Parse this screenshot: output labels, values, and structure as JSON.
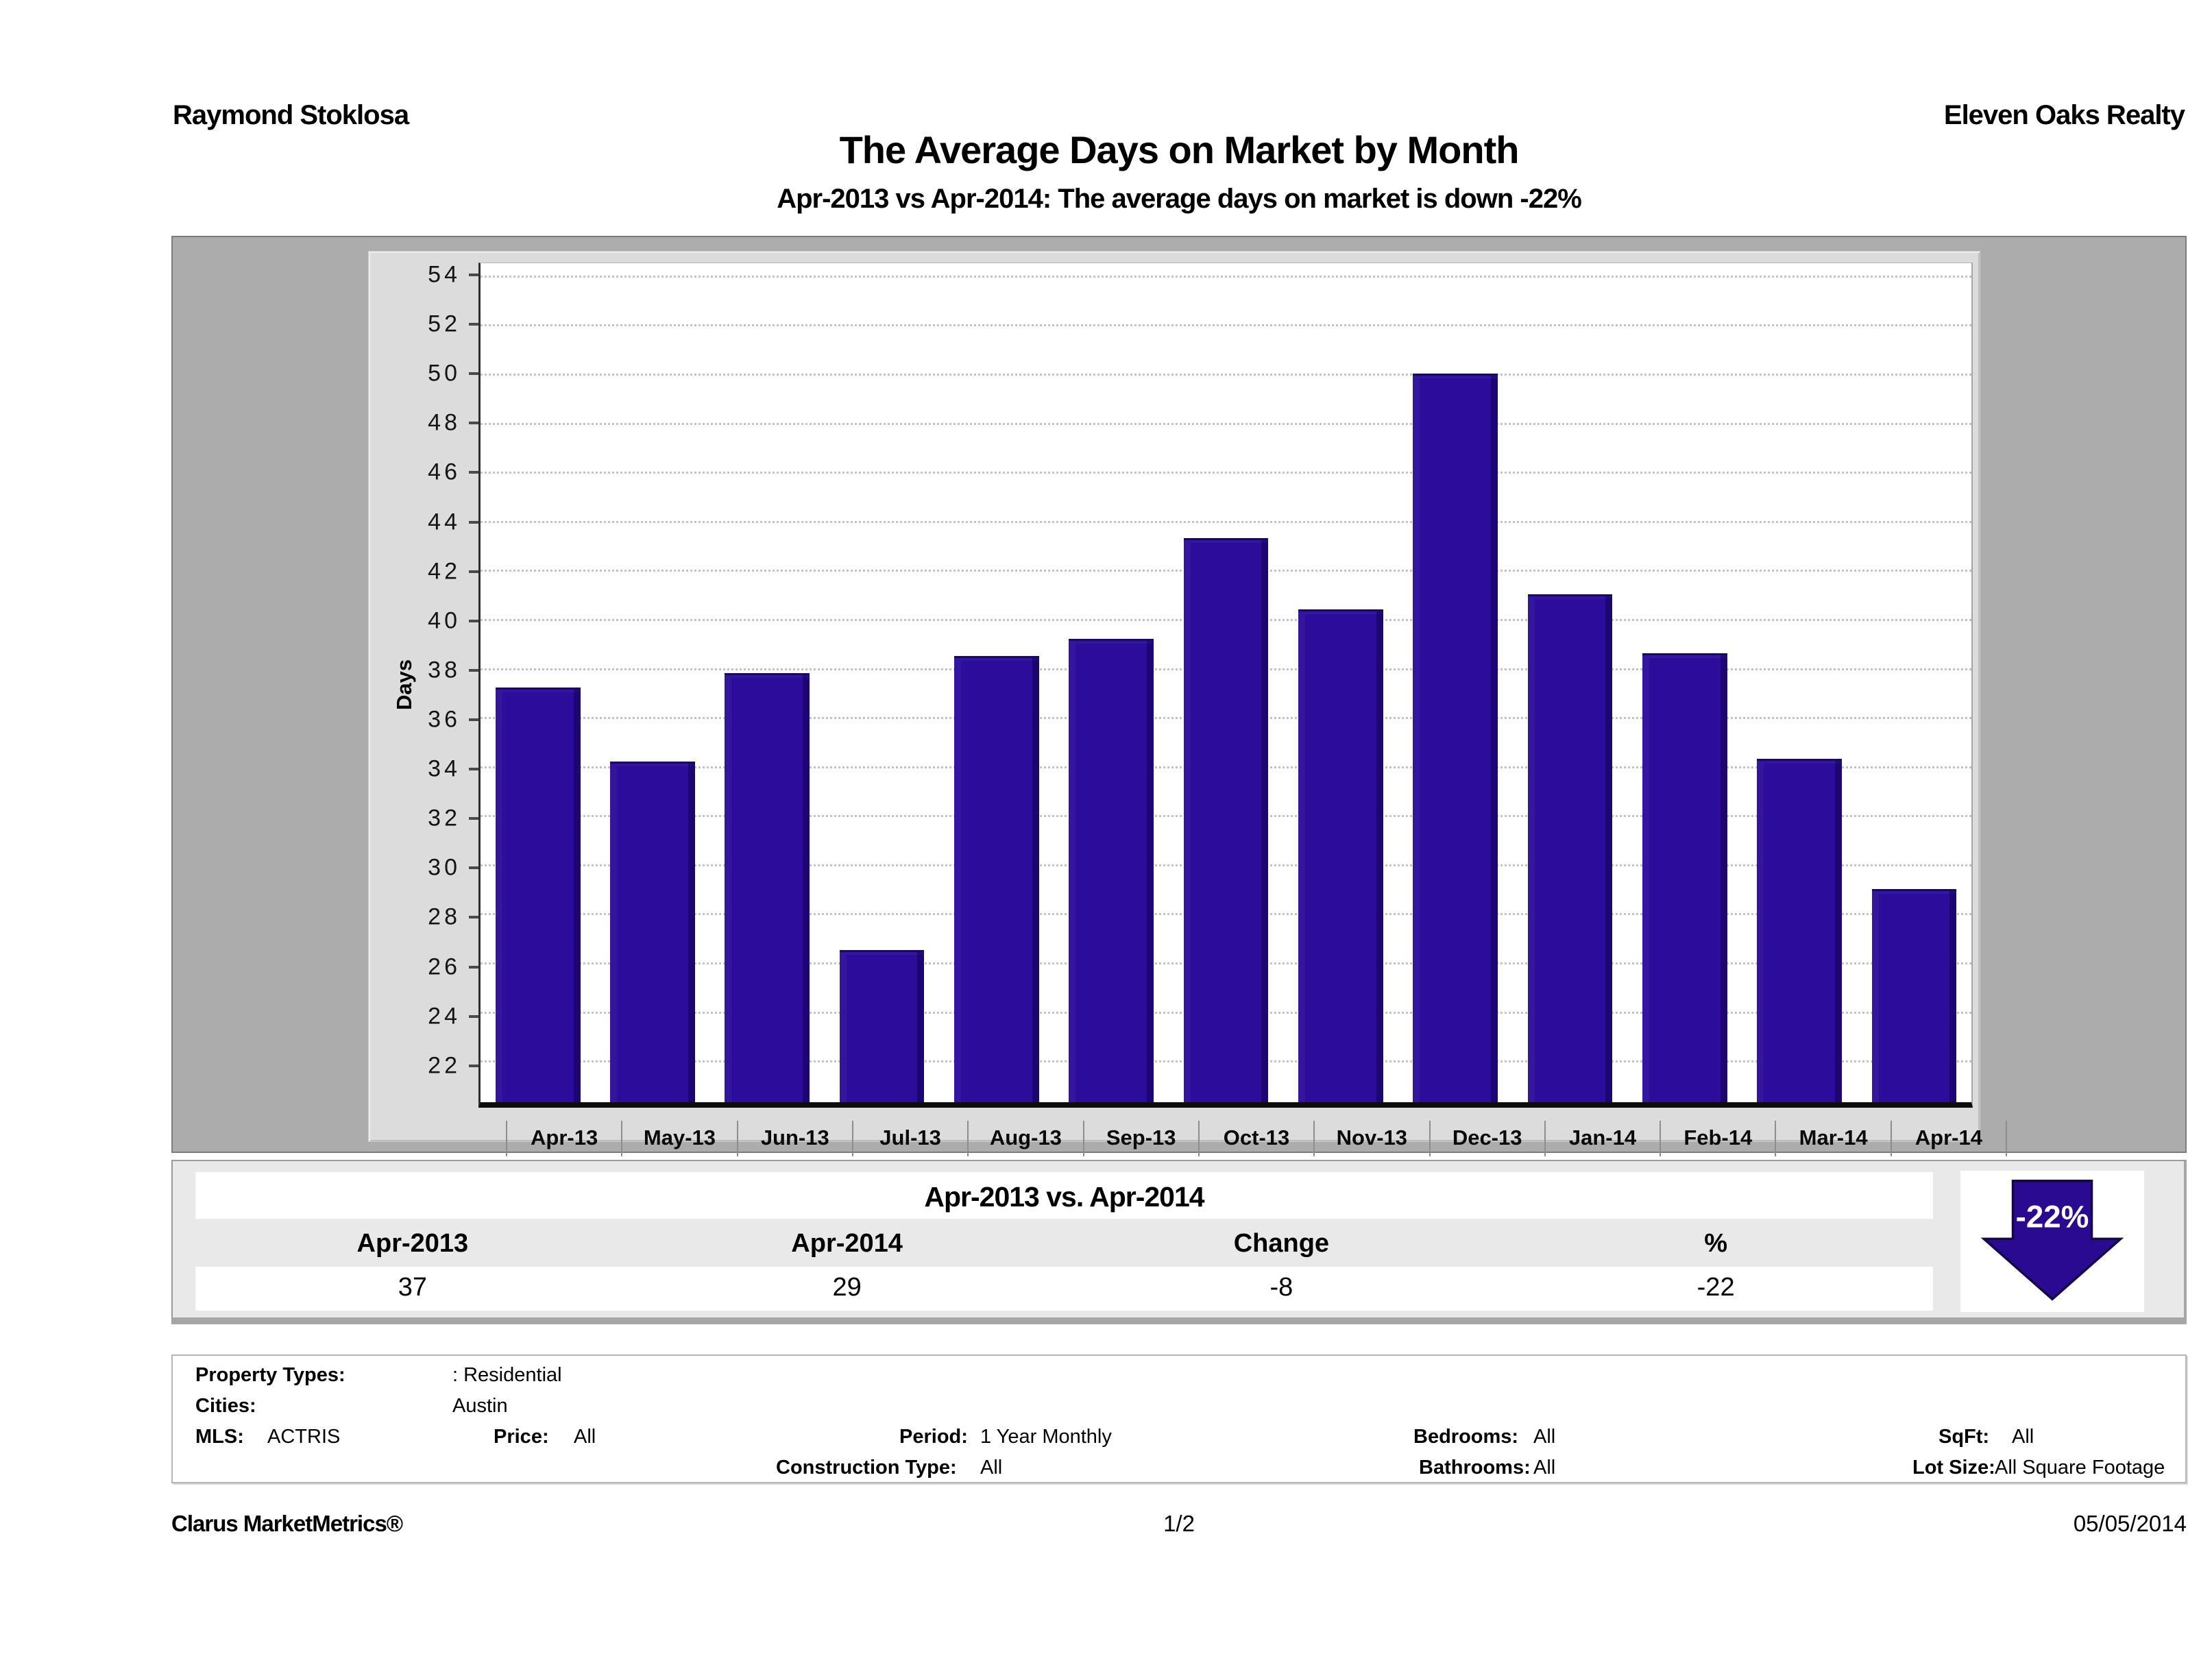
{
  "header": {
    "agent": "Raymond Stoklosa",
    "company": "Eleven Oaks Realty",
    "title": "The Average Days on Market by Month",
    "subtitle": "Apr-2013 vs Apr-2014: The average days on market is down -22%"
  },
  "chart_data": {
    "type": "bar",
    "title": "The Average Days on Market by Month",
    "categories": [
      "Apr-13",
      "May-13",
      "Jun-13",
      "Jul-13",
      "Aug-13",
      "Sep-13",
      "Oct-13",
      "Nov-13",
      "Dec-13",
      "Jan-14",
      "Feb-14",
      "Mar-14",
      "Apr-14"
    ],
    "values": [
      37.2,
      34.2,
      37.8,
      26.5,
      38.5,
      39.2,
      43.3,
      40.4,
      50.0,
      41.0,
      38.6,
      34.3,
      29.0
    ],
    "xlabel": "",
    "ylabel": "Days",
    "ylim": [
      20.3,
      54.5
    ],
    "yticks": [
      54,
      52,
      50,
      48,
      46,
      44,
      42,
      40,
      38,
      36,
      34,
      32,
      30,
      28,
      26,
      24,
      22
    ],
    "grid": "horizontal-dotted",
    "legend": "none",
    "bar_color": "#2c0c9a",
    "plot_bg": "#ffffff"
  },
  "comparison": {
    "title": "Apr-2013 vs. Apr-2014",
    "columns": [
      "Apr-2013",
      "Apr-2014",
      "Change",
      "%"
    ],
    "values": [
      "37",
      "29",
      "-8",
      "-22"
    ],
    "arrow": {
      "label": "-22%",
      "direction": "down",
      "color": "#2a0a90"
    }
  },
  "criteria": {
    "property_types_label": "Property Types:",
    "property_types_value": ": Residential",
    "cities_label": "Cities:",
    "cities_value": "Austin",
    "mls_label": "MLS:",
    "mls_value": "ACTRIS",
    "price_label": "Price:",
    "price_value": "All",
    "period_label": "Period:",
    "period_value": "1 Year Monthly",
    "bedrooms_label": "Bedrooms:",
    "bedrooms_value": "All",
    "sqft_label": "SqFt:",
    "sqft_value": "All",
    "construction_label": "Construction Type:",
    "construction_value": "All",
    "bathrooms_label": "Bathrooms:",
    "bathrooms_value": "All",
    "lot_label": "Lot Size:",
    "lot_value": "All Square Footage"
  },
  "footer": {
    "left": "Clarus MarketMetrics®",
    "center": "1/2",
    "right": "05/05/2014"
  }
}
